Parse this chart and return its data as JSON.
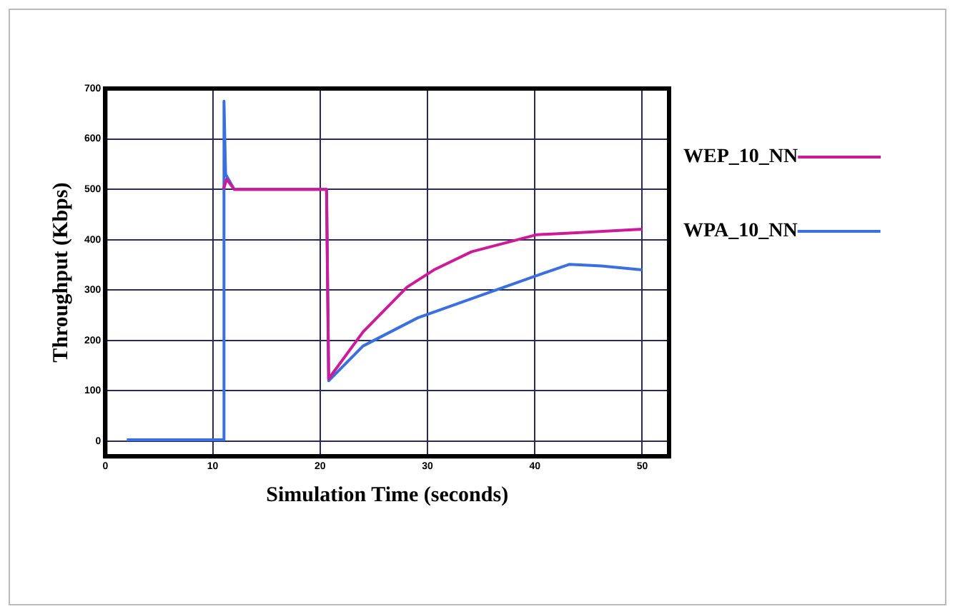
{
  "chart_data": {
    "type": "line",
    "xlabel": "Simulation Time (seconds)",
    "ylabel": "Throughput (Kbps)",
    "xlim": [
      0,
      52.5
    ],
    "xticks": [
      0,
      10,
      20,
      30,
      40,
      50
    ],
    "ylim": [
      -30,
      700
    ],
    "yticks": [
      0,
      100,
      200,
      300,
      400,
      500,
      600,
      700
    ],
    "grid": true,
    "legend": "right",
    "marker": "none",
    "line_style": "solid",
    "series": [
      {
        "name": "WEP_10_NN",
        "color": "#cc1a99",
        "x": [
          11,
          11.3,
          12,
          20.6,
          20.8,
          24,
          28.1,
          30.6,
          34.1,
          40.2,
          44.2,
          50
        ],
        "values": [
          500,
          520,
          500,
          500,
          124,
          217,
          306,
          340,
          376,
          410,
          414,
          421
        ]
      },
      {
        "name": "WPA_10_NN",
        "color": "#3a6fe0",
        "x": [
          2,
          11,
          11.05,
          11.2,
          12,
          20.6,
          20.8,
          24,
          29.1,
          34.1,
          40.2,
          43.2,
          46.2,
          50
        ],
        "values": [
          3,
          3,
          675,
          530,
          500,
          500,
          120,
          189,
          245,
          283,
          329,
          351,
          348,
          340
        ]
      }
    ]
  }
}
